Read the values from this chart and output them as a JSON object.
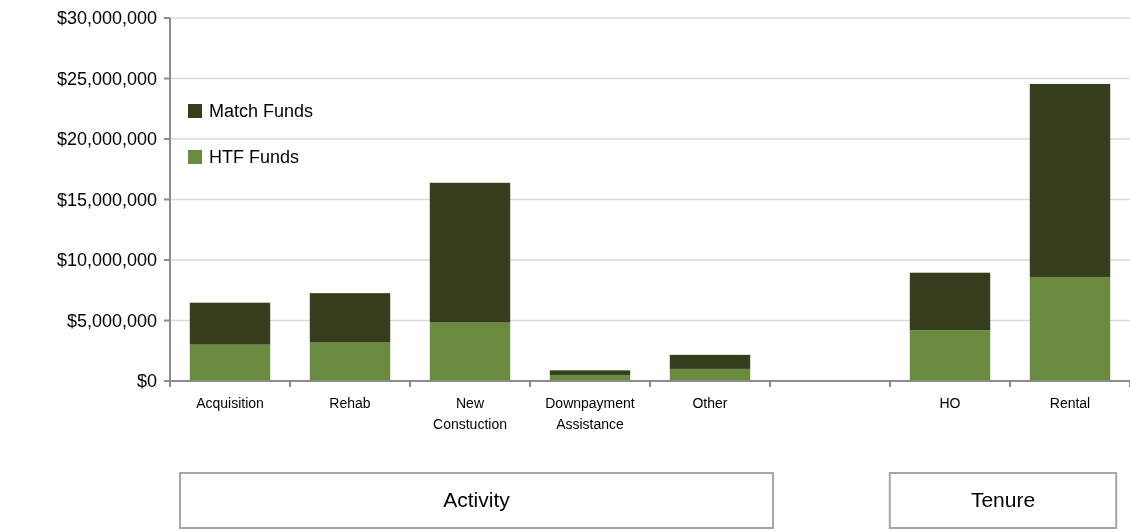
{
  "chart_data": {
    "type": "bar",
    "stacked": true,
    "categories": [
      "Acquisition",
      "Rehab",
      "New Constuction",
      "Downpayment Assistance",
      "Other",
      null,
      "HO",
      "Rental"
    ],
    "series": [
      {
        "name": "HTF Funds",
        "color": "#6a8a3f",
        "values": [
          3010000,
          3180000,
          4830000,
          500000,
          1000000,
          null,
          4200000,
          8600000
        ]
      },
      {
        "name": "Match Funds",
        "color": "#343d1c",
        "values": [
          3460000,
          4080000,
          11550000,
          380000,
          1160000,
          null,
          4750000,
          15950000
        ]
      }
    ],
    "ylim": [
      0,
      30000000
    ],
    "yticks": [
      {
        "value": 0,
        "label": "$0"
      },
      {
        "value": 5000000,
        "label": "$5,000,000"
      },
      {
        "value": 10000000,
        "label": "$10,000,000"
      },
      {
        "value": 15000000,
        "label": "$15,000,000"
      },
      {
        "value": 20000000,
        "label": "$20,000,000"
      },
      {
        "value": 25000000,
        "label": "$25,000,000"
      },
      {
        "value": 30000000,
        "label": "$30,000,000"
      }
    ],
    "grid": "y",
    "legend": "top left",
    "annotations": [
      "Activity",
      "Tenure"
    ]
  }
}
